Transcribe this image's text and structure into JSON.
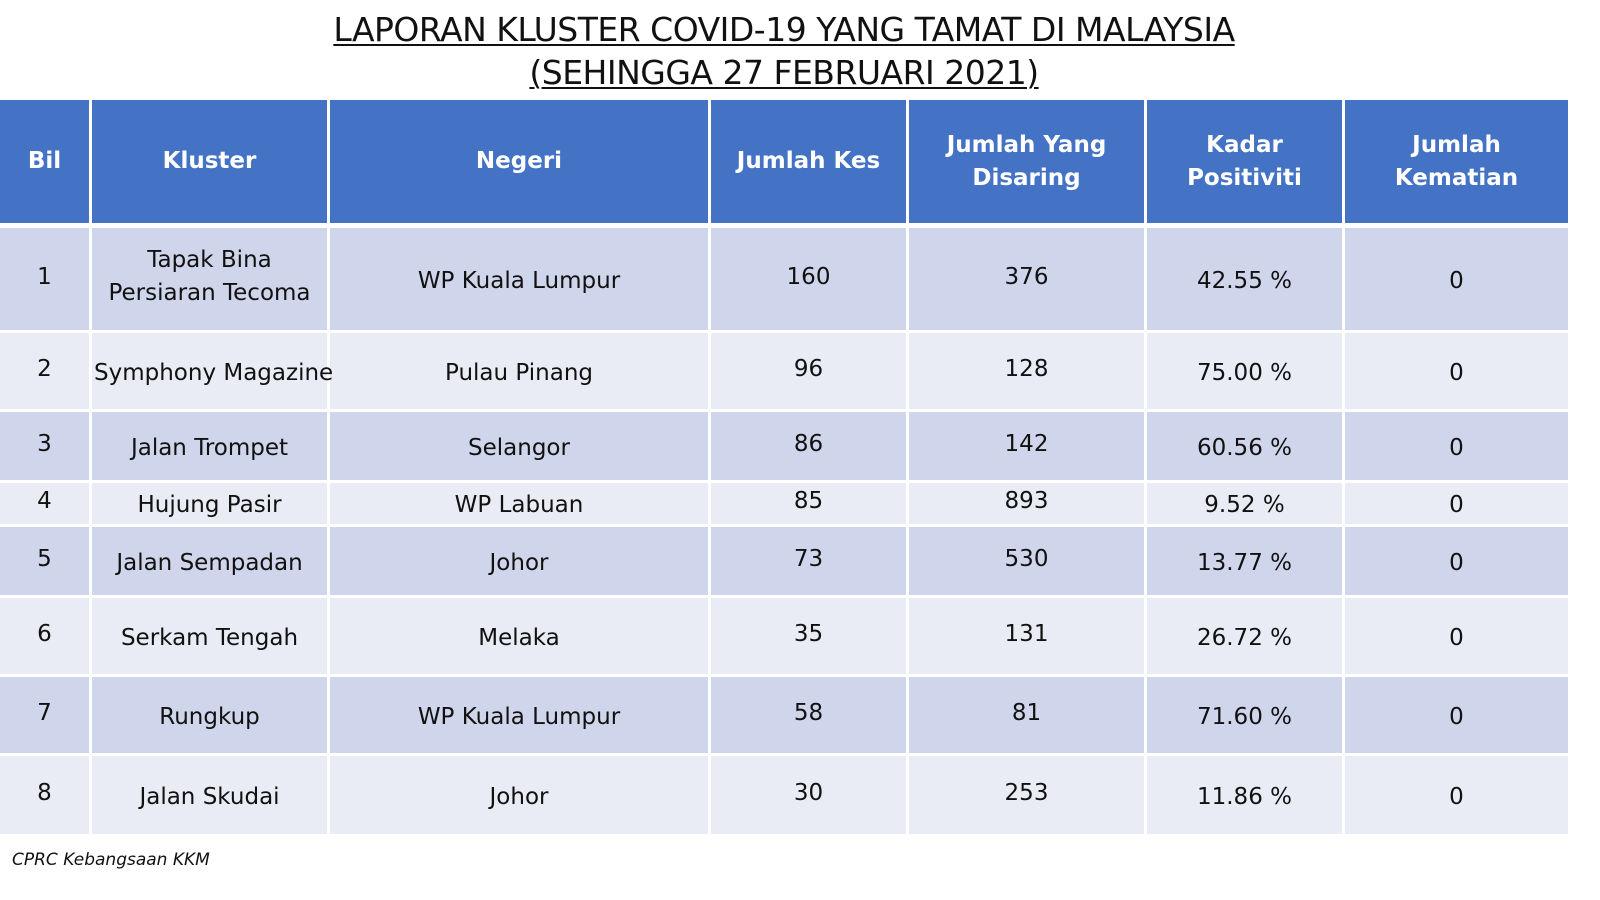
{
  "title": {
    "line1": "LAPORAN KLUSTER COVID-19 YANG TAMAT DI MALAYSIA",
    "line2": "(SEHINGGA  27 FEBRUARI 2021)"
  },
  "table": {
    "headers": {
      "bil": "Bil",
      "kluster": "Kluster",
      "negeri": "Negeri",
      "jumlah_kes": "Jumlah Kes",
      "jumlah_disaring": "Jumlah Yang Disaring",
      "kadar_positiviti": "Kadar Positiviti",
      "jumlah_kematian": "Jumlah Kematian"
    },
    "rows": [
      {
        "bil": "1",
        "kluster": "Tapak Bina Persiaran Tecoma",
        "negeri": "WP Kuala Lumpur",
        "jumlah_kes": "160",
        "jumlah_disaring": "376",
        "kadar_positiviti": "42.55 %",
        "jumlah_kematian": "0"
      },
      {
        "bil": "2",
        "kluster": "Symphony Magazine",
        "negeri": "Pulau Pinang",
        "jumlah_kes": "96",
        "jumlah_disaring": "128",
        "kadar_positiviti": "75.00 %",
        "jumlah_kematian": "0"
      },
      {
        "bil": "3",
        "kluster": "Jalan Trompet",
        "negeri": "Selangor",
        "jumlah_kes": "86",
        "jumlah_disaring": "142",
        "kadar_positiviti": "60.56 %",
        "jumlah_kematian": "0"
      },
      {
        "bil": "4",
        "kluster": "Hujung Pasir",
        "negeri": "WP Labuan",
        "jumlah_kes": "85",
        "jumlah_disaring": "893",
        "kadar_positiviti": "9.52 %",
        "jumlah_kematian": "0"
      },
      {
        "bil": "5",
        "kluster": "Jalan Sempadan",
        "negeri": "Johor",
        "jumlah_kes": "73",
        "jumlah_disaring": "530",
        "kadar_positiviti": "13.77 %",
        "jumlah_kematian": "0"
      },
      {
        "bil": "6",
        "kluster": "Serkam Tengah",
        "negeri": "Melaka",
        "jumlah_kes": "35",
        "jumlah_disaring": "131",
        "kadar_positiviti": "26.72 %",
        "jumlah_kematian": "0"
      },
      {
        "bil": "7",
        "kluster": "Rungkup",
        "negeri": "WP Kuala Lumpur",
        "jumlah_kes": "58",
        "jumlah_disaring": "81",
        "kadar_positiviti": "71.60 %",
        "jumlah_kematian": "0"
      },
      {
        "bil": "8",
        "kluster": "Jalan Skudai",
        "negeri": "Johor",
        "jumlah_kes": "30",
        "jumlah_disaring": "253",
        "kadar_positiviti": "11.86 %",
        "jumlah_kematian": "0"
      }
    ]
  },
  "footer": {
    "source": "CPRC Kebangsaan KKM"
  },
  "colors": {
    "header_bg": "#4472c4",
    "row_odd_bg": "#cfd5ea",
    "row_even_bg": "#e9ebf5"
  }
}
